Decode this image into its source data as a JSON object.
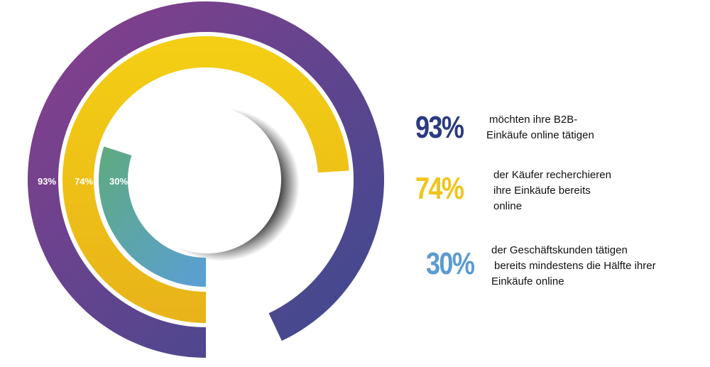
{
  "chart_data": {
    "type": "radial-bar",
    "series": [
      {
        "label": "93%",
        "value": 93,
        "color_start": "#8a3e8c",
        "color_end": "#3a4a90"
      },
      {
        "label": "74%",
        "value": 74,
        "color_start": "#f4cf14",
        "color_end": "#e8b31a"
      },
      {
        "label": "30%",
        "value": 30,
        "color_start": "#6fae86",
        "color_end": "#5a9fd6"
      }
    ]
  },
  "legend": [
    {
      "pct": "93%",
      "color": "#2a3a80",
      "lines": [
        "möchten ihre B2B-",
        "Einkäufe online tätigen"
      ]
    },
    {
      "pct": "74%",
      "color": "#f0c41a",
      "lines": [
        "der Käufer recherchieren",
        "ihre Einkäufe bereits",
        "online"
      ]
    },
    {
      "pct": "30%",
      "color": "#5b9bd0",
      "lines": [
        "der Geschäftskunden tätigen",
        "bereits mindestens die Hälfte ihrer",
        "Einkäufe online"
      ]
    }
  ]
}
